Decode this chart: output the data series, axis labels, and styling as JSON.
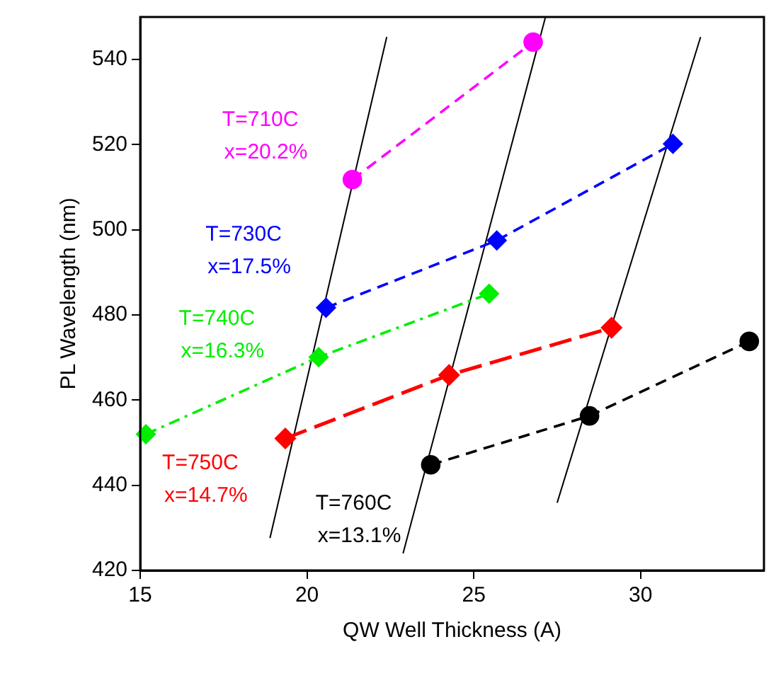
{
  "chart_data": {
    "type": "line",
    "xlabel": "QW Well Thickness (A)",
    "ylabel": "PL Wavelength (nm)",
    "xlim": [
      15,
      33.7
    ],
    "xticks": [
      15,
      20,
      25,
      30
    ],
    "ylim": [
      420,
      550
    ],
    "yticks": [
      420,
      440,
      460,
      480,
      500,
      520,
      540
    ],
    "grid": false,
    "legend": false,
    "series": [
      {
        "name": "T=710C\nx=20.2%",
        "color": "#ff00ff",
        "marker": "circle",
        "line_style": "dashed",
        "x": [
          21.36,
          26.78
        ],
        "values": [
          511.8,
          544.1
        ]
      },
      {
        "name": "T=730C\nx=17.5%",
        "color": "#0000ff",
        "marker": "diamond",
        "line_style": "dashed",
        "x": [
          20.57,
          25.69,
          30.97
        ],
        "values": [
          481.7,
          497.5,
          520.2
        ]
      },
      {
        "name": "T=740C\nx=16.3%",
        "color": "#00ee00",
        "marker": "diamond",
        "line_style": "dashdot",
        "x": [
          15.17,
          20.35,
          25.46
        ],
        "values": [
          452,
          470.1,
          485
        ]
      },
      {
        "name": "T=750C\nx=14.7%",
        "color": "#ff0000",
        "marker": "diamond",
        "line_style": "dashed",
        "x": [
          19.35,
          24.26,
          29.13
        ],
        "values": [
          451,
          465.9,
          477
        ]
      },
      {
        "name": "T=760C\nx=13.1%",
        "color": "#000000",
        "marker": "circle",
        "line_style": "dashed",
        "x": [
          23.71,
          28.47,
          33.26
        ],
        "values": [
          444.8,
          456.3,
          473.8
        ]
      },
      {
        "color": "#000000",
        "marker": "none",
        "line_style": "solid",
        "x": [
          18.89,
          22.39
        ],
        "values": [
          427.6,
          545.3
        ]
      },
      {
        "color": "#000000",
        "marker": "none",
        "line_style": "solid",
        "x": [
          22.88,
          27.15
        ],
        "values": [
          424,
          550
        ]
      },
      {
        "color": "#000000",
        "marker": "none",
        "line_style": "solid",
        "x": [
          27.5,
          31.8
        ],
        "values": [
          435.9,
          545.3
        ]
      }
    ]
  }
}
